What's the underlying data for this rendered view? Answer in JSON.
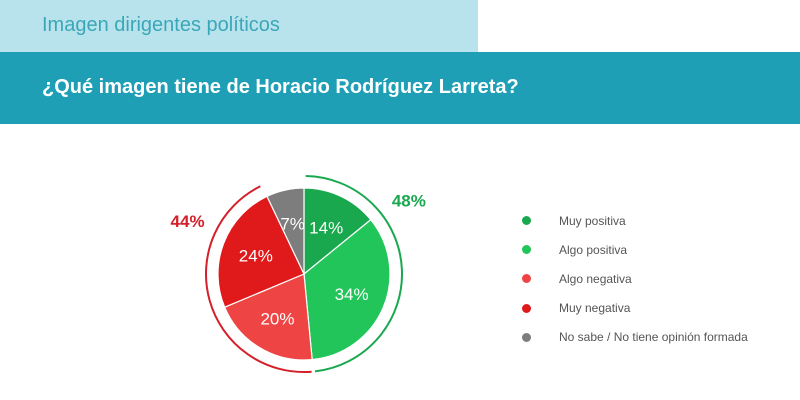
{
  "header": {
    "section_title": "Imagen dirigentes políticos",
    "question": "¿Qué imagen tiene de Horacio Rodríguez Larreta?"
  },
  "colors": {
    "top_band": "#b9e3ec",
    "header_bar": "#1e9fb5",
    "positive_total": "#1aa84f",
    "negative_total": "#d4202a"
  },
  "chart_data": {
    "type": "pie",
    "slices": [
      {
        "label": "Muy positiva",
        "value": 14,
        "display": "14%",
        "color": "#1aa84f"
      },
      {
        "label": "Algo positiva",
        "value": 34,
        "display": "34%",
        "color": "#22c55a"
      },
      {
        "label": "Algo negativa",
        "value": 20,
        "display": "20%",
        "color": "#ee4444"
      },
      {
        "label": "Muy negativa",
        "value": 24,
        "display": "24%",
        "color": "#e01a1a"
      },
      {
        "label": "No sabe / No tiene opinión formada",
        "value": 7,
        "display": "7%",
        "color": "#7d7d7d"
      }
    ],
    "groups": [
      {
        "display": "48%",
        "color": "#1aa84f",
        "members": [
          "Muy positiva",
          "Algo positiva"
        ]
      },
      {
        "display": "44%",
        "color": "#d4202a",
        "members": [
          "Algo negativa",
          "Muy negativa"
        ]
      }
    ],
    "legend_position": "right"
  }
}
